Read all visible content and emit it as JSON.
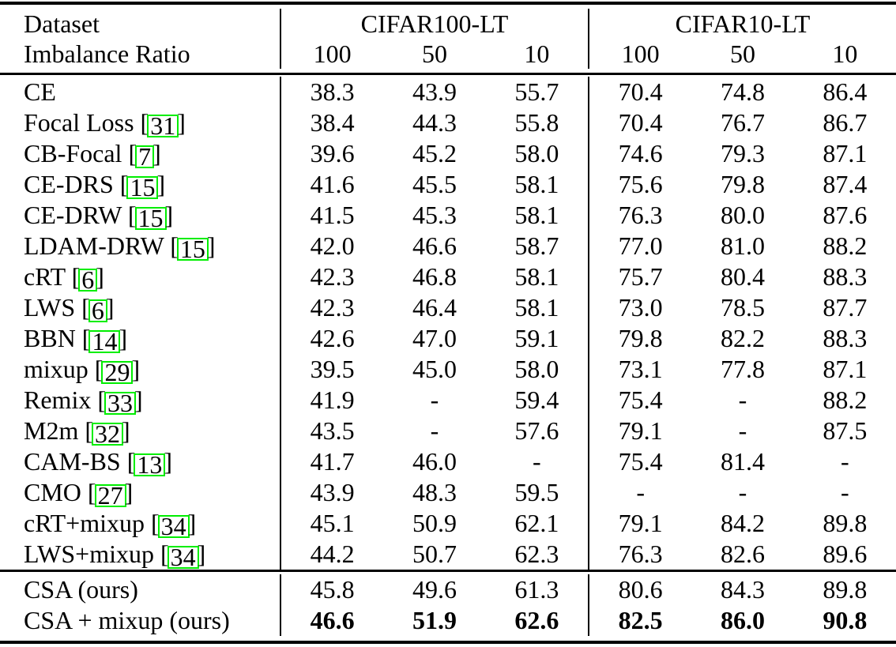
{
  "colors": {
    "citation_box": "#00EE00",
    "text": "#000000",
    "background": "#FFFFFF"
  },
  "table": {
    "header": {
      "dataset_label": "Dataset",
      "imbalance_label": "Imbalance Ratio",
      "groups": [
        {
          "title": "CIFAR100-LT",
          "subcols": [
            "100",
            "50",
            "10"
          ]
        },
        {
          "title": "CIFAR10-LT",
          "subcols": [
            "100",
            "50",
            "10"
          ]
        }
      ]
    },
    "citation_brackets": {
      "open": " [",
      "close": "]"
    },
    "rows": [
      {
        "method": "CE",
        "cite": null,
        "values": [
          "38.3",
          "43.9",
          "55.7",
          "70.4",
          "74.8",
          "86.4"
        ],
        "bold_values": false
      },
      {
        "method": "Focal Loss",
        "cite": "31",
        "values": [
          "38.4",
          "44.3",
          "55.8",
          "70.4",
          "76.7",
          "86.7"
        ],
        "bold_values": false
      },
      {
        "method": "CB-Focal",
        "cite": "7",
        "values": [
          "39.6",
          "45.2",
          "58.0",
          "74.6",
          "79.3",
          "87.1"
        ],
        "bold_values": false
      },
      {
        "method": "CE-DRS",
        "cite": "15",
        "values": [
          "41.6",
          "45.5",
          "58.1",
          "75.6",
          "79.8",
          "87.4"
        ],
        "bold_values": false
      },
      {
        "method": "CE-DRW",
        "cite": "15",
        "values": [
          "41.5",
          "45.3",
          "58.1",
          "76.3",
          "80.0",
          "87.6"
        ],
        "bold_values": false
      },
      {
        "method": "LDAM-DRW",
        "cite": "15",
        "values": [
          "42.0",
          "46.6",
          "58.7",
          "77.0",
          "81.0",
          "88.2"
        ],
        "bold_values": false
      },
      {
        "method": "cRT",
        "cite": "6",
        "values": [
          "42.3",
          "46.8",
          "58.1",
          "75.7",
          "80.4",
          "88.3"
        ],
        "bold_values": false
      },
      {
        "method": "LWS",
        "cite": "6",
        "values": [
          "42.3",
          "46.4",
          "58.1",
          "73.0",
          "78.5",
          "87.7"
        ],
        "bold_values": false
      },
      {
        "method": "BBN",
        "cite": "14",
        "values": [
          "42.6",
          "47.0",
          "59.1",
          "79.8",
          "82.2",
          "88.3"
        ],
        "bold_values": false
      },
      {
        "method": "mixup",
        "cite": "29",
        "values": [
          "39.5",
          "45.0",
          "58.0",
          "73.1",
          "77.8",
          "87.1"
        ],
        "bold_values": false
      },
      {
        "method": "Remix",
        "cite": "33",
        "values": [
          "41.9",
          "-",
          "59.4",
          "75.4",
          "-",
          "88.2"
        ],
        "bold_values": false
      },
      {
        "method": "M2m",
        "cite": "32",
        "values": [
          "43.5",
          "-",
          "57.6",
          "79.1",
          "-",
          "87.5"
        ],
        "bold_values": false
      },
      {
        "method": "CAM-BS",
        "cite": "13",
        "values": [
          "41.7",
          "46.0",
          "-",
          "75.4",
          "81.4",
          "-"
        ],
        "bold_values": false
      },
      {
        "method": "CMO",
        "cite": "27",
        "values": [
          "43.9",
          "48.3",
          "59.5",
          "-",
          "-",
          "-"
        ],
        "bold_values": false
      },
      {
        "method": "cRT+mixup",
        "cite": "34",
        "values": [
          "45.1",
          "50.9",
          "62.1",
          "79.1",
          "84.2",
          "89.8"
        ],
        "bold_values": false
      },
      {
        "method": "LWS+mixup",
        "cite": "34",
        "values": [
          "44.2",
          "50.7",
          "62.3",
          "76.3",
          "82.6",
          "89.6"
        ],
        "bold_values": false
      }
    ],
    "footer_rows": [
      {
        "method": "CSA (ours)",
        "cite": null,
        "values": [
          "45.8",
          "49.6",
          "61.3",
          "80.6",
          "84.3",
          "89.8"
        ],
        "bold_values": false
      },
      {
        "method": "CSA + mixup (ours)",
        "cite": null,
        "values": [
          "46.6",
          "51.9",
          "62.6",
          "82.5",
          "86.0",
          "90.8"
        ],
        "bold_values": true
      }
    ]
  }
}
